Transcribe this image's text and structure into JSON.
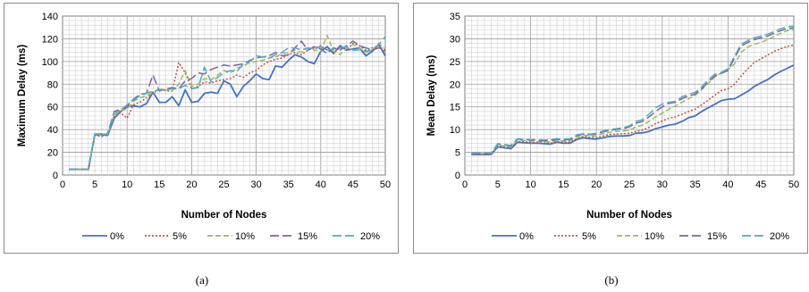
{
  "chart_data": [
    {
      "type": "line",
      "panel_label": "(a)",
      "title": "",
      "xlabel": "Number of Nodes",
      "ylabel": "Maximum Delay (ms)",
      "xlim": [
        0,
        50
      ],
      "ylim": [
        0,
        140
      ],
      "xticks": [
        0,
        5,
        10,
        15,
        20,
        25,
        30,
        35,
        40,
        45,
        50
      ],
      "yticks": [
        0,
        20,
        40,
        60,
        80,
        100,
        120,
        140
      ],
      "grid": true,
      "legend_position": "bottom",
      "series": [
        {
          "name": "0%",
          "color": "#4472C4",
          "dash": "solid",
          "x": [
            1,
            2,
            3,
            4,
            5,
            6,
            7,
            8,
            9,
            10,
            11,
            12,
            13,
            14,
            15,
            16,
            17,
            18,
            19,
            20,
            21,
            22,
            23,
            24,
            25,
            26,
            27,
            28,
            29,
            30,
            31,
            32,
            33,
            34,
            35,
            36,
            37,
            38,
            39,
            40,
            41,
            42,
            43,
            44,
            45,
            46,
            47,
            48,
            49,
            50
          ],
          "y": [
            5,
            5,
            5,
            5,
            36,
            36,
            35,
            50,
            56,
            60,
            61,
            60,
            63,
            73,
            64,
            64,
            69,
            61,
            75,
            64,
            65,
            72,
            73,
            72,
            83,
            80,
            69,
            78,
            83,
            89,
            85,
            84,
            96,
            95,
            101,
            106,
            104,
            100,
            98,
            109,
            113,
            107,
            114,
            110,
            111,
            112,
            105,
            109,
            115,
            105
          ]
        },
        {
          "name": "5%",
          "color": "#C0504D",
          "dash": "dot",
          "x": [
            1,
            2,
            3,
            4,
            5,
            6,
            7,
            8,
            9,
            10,
            11,
            12,
            13,
            14,
            15,
            16,
            17,
            18,
            19,
            20,
            21,
            22,
            23,
            24,
            25,
            26,
            27,
            28,
            29,
            30,
            31,
            32,
            33,
            34,
            35,
            36,
            37,
            38,
            39,
            40,
            41,
            42,
            43,
            44,
            45,
            46,
            47,
            48,
            49,
            50
          ],
          "y": [
            5,
            5,
            5,
            5,
            35,
            34,
            35,
            52,
            55,
            50,
            62,
            64,
            68,
            72,
            76,
            74,
            74,
            99,
            90,
            76,
            78,
            82,
            81,
            83,
            84,
            85,
            88,
            86,
            90,
            92,
            97,
            100,
            102,
            103,
            106,
            108,
            106,
            110,
            112,
            114,
            110,
            108,
            112,
            110,
            116,
            114,
            110,
            112,
            114,
            108
          ]
        },
        {
          "name": "10%",
          "color": "#9BBB59",
          "dash": "dash",
          "x": [
            1,
            2,
            3,
            4,
            5,
            6,
            7,
            8,
            9,
            10,
            11,
            12,
            13,
            14,
            15,
            16,
            17,
            18,
            19,
            20,
            21,
            22,
            23,
            24,
            25,
            26,
            27,
            28,
            29,
            30,
            31,
            32,
            33,
            34,
            35,
            36,
            37,
            38,
            39,
            40,
            41,
            42,
            43,
            44,
            45,
            46,
            47,
            48,
            49,
            50
          ],
          "y": [
            5,
            5,
            5,
            5,
            36,
            35,
            36,
            53,
            57,
            58,
            65,
            68,
            70,
            73,
            75,
            75,
            74,
            80,
            92,
            78,
            80,
            85,
            84,
            88,
            92,
            90,
            94,
            96,
            99,
            100,
            101,
            103,
            104,
            107,
            108,
            110,
            108,
            112,
            110,
            109,
            123,
            109,
            106,
            112,
            115,
            112,
            108,
            110,
            116,
            111
          ]
        },
        {
          "name": "15%",
          "color": "#8064A2",
          "dash": "longdash",
          "x": [
            1,
            2,
            3,
            4,
            5,
            6,
            7,
            8,
            9,
            10,
            11,
            12,
            13,
            14,
            15,
            16,
            17,
            18,
            19,
            20,
            21,
            22,
            23,
            24,
            25,
            26,
            27,
            28,
            29,
            30,
            31,
            32,
            33,
            34,
            35,
            36,
            37,
            38,
            39,
            40,
            41,
            42,
            43,
            44,
            45,
            46,
            47,
            48,
            49,
            50
          ],
          "y": [
            5,
            5,
            5,
            5,
            36,
            34,
            37,
            56,
            58,
            60,
            67,
            71,
            72,
            88,
            74,
            76,
            77,
            76,
            83,
            85,
            90,
            89,
            93,
            95,
            97,
            96,
            97,
            98,
            101,
            103,
            104,
            105,
            108,
            105,
            106,
            112,
            118,
            110,
            113,
            111,
            107,
            112,
            110,
            114,
            118,
            114,
            112,
            110,
            112,
            110
          ]
        },
        {
          "name": "20%",
          "color": "#4BACC6",
          "dash": "longdash",
          "x": [
            1,
            2,
            3,
            4,
            5,
            6,
            7,
            8,
            9,
            10,
            11,
            12,
            13,
            14,
            15,
            16,
            17,
            18,
            19,
            20,
            21,
            22,
            23,
            24,
            25,
            26,
            27,
            28,
            29,
            30,
            31,
            32,
            33,
            34,
            35,
            36,
            37,
            38,
            39,
            40,
            41,
            42,
            43,
            44,
            45,
            46,
            47,
            48,
            49,
            50
          ],
          "y": [
            5,
            5,
            5,
            5,
            36,
            36,
            36,
            55,
            57,
            62,
            66,
            70,
            72,
            74,
            75,
            75,
            76,
            76,
            79,
            76,
            77,
            95,
            82,
            86,
            90,
            92,
            91,
            98,
            100,
            105,
            104,
            103,
            106,
            108,
            112,
            112,
            110,
            112,
            111,
            113,
            110,
            111,
            112,
            113,
            110,
            110,
            109,
            110,
            115,
            122
          ]
        }
      ]
    },
    {
      "type": "line",
      "panel_label": "(b)",
      "title": "",
      "xlabel": "Number of Nodes",
      "ylabel": "Mean Delay (ms)",
      "xlim": [
        0,
        50
      ],
      "ylim": [
        0,
        35
      ],
      "xticks": [
        0,
        5,
        10,
        15,
        20,
        25,
        30,
        35,
        40,
        45,
        50
      ],
      "yticks": [
        0,
        5,
        10,
        15,
        20,
        25,
        30,
        35
      ],
      "grid": true,
      "legend_position": "bottom",
      "series": [
        {
          "name": "0%",
          "color": "#4472C4",
          "dash": "solid",
          "x": [
            1,
            2,
            3,
            4,
            5,
            6,
            7,
            8,
            9,
            10,
            11,
            12,
            13,
            14,
            15,
            16,
            17,
            18,
            19,
            20,
            21,
            22,
            23,
            24,
            25,
            26,
            27,
            28,
            29,
            30,
            31,
            32,
            33,
            34,
            35,
            36,
            37,
            38,
            39,
            40,
            41,
            42,
            43,
            44,
            45,
            46,
            47,
            48,
            49,
            50
          ],
          "y": [
            4.5,
            4.5,
            4.5,
            4.5,
            6.2,
            6.0,
            5.8,
            7.2,
            7.1,
            7.0,
            7.0,
            6.9,
            6.8,
            7.2,
            7.0,
            7.0,
            7.8,
            8.2,
            8.0,
            7.9,
            8.2,
            8.5,
            8.6,
            8.6,
            8.7,
            9.2,
            9.3,
            9.6,
            10.2,
            10.6,
            11.0,
            11.2,
            11.8,
            12.6,
            13.0,
            14.0,
            14.8,
            15.6,
            16.4,
            16.7,
            16.8,
            17.6,
            18.4,
            19.5,
            20.3,
            21.0,
            22.0,
            22.8,
            23.5,
            24.2
          ]
        },
        {
          "name": "5%",
          "color": "#C0504D",
          "dash": "dot",
          "x": [
            1,
            2,
            3,
            4,
            5,
            6,
            7,
            8,
            9,
            10,
            11,
            12,
            13,
            14,
            15,
            16,
            17,
            18,
            19,
            20,
            21,
            22,
            23,
            24,
            25,
            26,
            27,
            28,
            29,
            30,
            31,
            32,
            33,
            34,
            35,
            36,
            37,
            38,
            39,
            40,
            41,
            42,
            43,
            44,
            45,
            46,
            47,
            48,
            49,
            50
          ],
          "y": [
            4.6,
            4.6,
            4.6,
            4.6,
            6.4,
            6.2,
            6.0,
            7.4,
            7.3,
            7.2,
            7.1,
            7.0,
            7.0,
            7.4,
            7.2,
            7.3,
            8.0,
            8.5,
            8.3,
            8.2,
            8.6,
            8.9,
            9.0,
            9.1,
            9.2,
            9.6,
            9.9,
            10.5,
            11.3,
            11.9,
            12.5,
            12.8,
            13.4,
            14.0,
            14.5,
            15.5,
            16.5,
            17.6,
            18.6,
            19.0,
            20.0,
            21.8,
            23.4,
            24.8,
            25.6,
            26.4,
            27.2,
            27.8,
            28.3,
            28.6
          ]
        },
        {
          "name": "10%",
          "color": "#9BBB59",
          "dash": "dash",
          "x": [
            1,
            2,
            3,
            4,
            5,
            6,
            7,
            8,
            9,
            10,
            11,
            12,
            13,
            14,
            15,
            16,
            17,
            18,
            19,
            20,
            21,
            22,
            23,
            24,
            25,
            26,
            27,
            28,
            29,
            30,
            31,
            32,
            33,
            34,
            35,
            36,
            37,
            38,
            39,
            40,
            41,
            42,
            43,
            44,
            45,
            46,
            47,
            48,
            49,
            50
          ],
          "y": [
            4.7,
            4.7,
            4.7,
            4.7,
            6.6,
            6.4,
            6.2,
            7.7,
            7.6,
            7.5,
            7.4,
            7.3,
            7.3,
            7.6,
            7.5,
            7.6,
            8.4,
            8.8,
            8.6,
            8.6,
            9.1,
            9.4,
            9.6,
            9.7,
            9.9,
            10.6,
            11.0,
            11.8,
            12.8,
            13.6,
            14.5,
            15.2,
            16.0,
            16.8,
            17.5,
            18.8,
            20.2,
            21.6,
            22.5,
            23.2,
            24.5,
            27.0,
            28.2,
            28.8,
            29.2,
            29.8,
            30.5,
            31.2,
            31.8,
            32.0
          ]
        },
        {
          "name": "15%",
          "color": "#8064A2",
          "dash": "longdash",
          "x": [
            1,
            2,
            3,
            4,
            5,
            6,
            7,
            8,
            9,
            10,
            11,
            12,
            13,
            14,
            15,
            16,
            17,
            18,
            19,
            20,
            21,
            22,
            23,
            24,
            25,
            26,
            27,
            28,
            29,
            30,
            31,
            32,
            33,
            34,
            35,
            36,
            37,
            38,
            39,
            40,
            41,
            42,
            43,
            44,
            45,
            46,
            47,
            48,
            49,
            50
          ],
          "y": [
            4.8,
            4.8,
            4.8,
            4.8,
            6.8,
            6.6,
            6.4,
            7.9,
            7.8,
            7.7,
            7.6,
            7.5,
            7.6,
            7.8,
            7.7,
            7.8,
            8.7,
            9.0,
            8.9,
            9.0,
            9.5,
            9.8,
            10.0,
            10.2,
            10.6,
            11.4,
            11.8,
            12.8,
            14.0,
            15.0,
            15.8,
            16.0,
            16.8,
            17.4,
            17.8,
            19.0,
            20.5,
            21.8,
            22.4,
            23.0,
            25.8,
            28.4,
            29.2,
            29.8,
            30.2,
            30.6,
            31.2,
            31.8,
            32.2,
            32.4
          ]
        },
        {
          "name": "20%",
          "color": "#4BACC6",
          "dash": "longdash",
          "x": [
            1,
            2,
            3,
            4,
            5,
            6,
            7,
            8,
            9,
            10,
            11,
            12,
            13,
            14,
            15,
            16,
            17,
            18,
            19,
            20,
            21,
            22,
            23,
            24,
            25,
            26,
            27,
            28,
            29,
            30,
            31,
            32,
            33,
            34,
            35,
            36,
            37,
            38,
            39,
            40,
            41,
            42,
            43,
            44,
            45,
            46,
            47,
            48,
            49,
            50
          ],
          "y": [
            4.9,
            4.9,
            4.9,
            4.9,
            6.9,
            6.7,
            6.5,
            8.0,
            7.9,
            7.8,
            7.8,
            7.7,
            7.8,
            8.0,
            7.9,
            8.0,
            8.8,
            9.1,
            9.0,
            9.2,
            9.7,
            10.0,
            10.2,
            10.4,
            10.8,
            11.8,
            12.2,
            13.4,
            14.8,
            15.6,
            16.0,
            16.2,
            17.2,
            17.8,
            18.2,
            19.4,
            21.0,
            22.2,
            22.6,
            23.4,
            26.2,
            28.8,
            29.6,
            30.2,
            30.6,
            31.0,
            31.6,
            32.2,
            32.6,
            32.8
          ]
        }
      ]
    }
  ]
}
